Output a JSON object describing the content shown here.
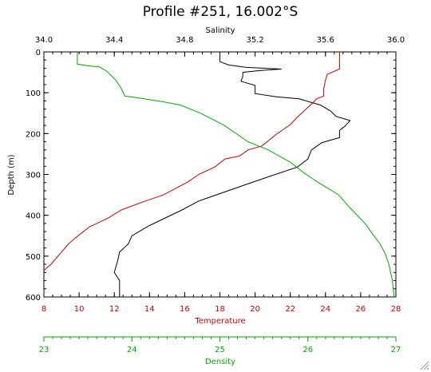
{
  "chart_data": {
    "type": "line",
    "title": "Profile #251, 16.002°S",
    "axes": {
      "salinity": {
        "label": "Salinity",
        "min": 34.0,
        "max": 36.0,
        "ticks": [
          "34.0",
          "34.4",
          "34.8",
          "35.2",
          "35.6",
          "36.0"
        ],
        "color": "#000000"
      },
      "temperature": {
        "label": "Temperature",
        "min": 8,
        "max": 28,
        "ticks": [
          "8",
          "10",
          "12",
          "14",
          "16",
          "18",
          "20",
          "22",
          "24",
          "26",
          "28"
        ],
        "color": "#cc0000"
      },
      "density": {
        "label": "Density",
        "min": 23,
        "max": 27,
        "ticks": [
          "23",
          "24",
          "25",
          "26",
          "27"
        ],
        "color": "#00aa00"
      },
      "depth": {
        "label": "Depth (m)",
        "min": 0,
        "max": 600,
        "ticks": [
          "0",
          "100",
          "200",
          "300",
          "400",
          "500",
          "600"
        ],
        "inverted": true
      }
    },
    "series": [
      {
        "axis": "salinity",
        "color": "#000000",
        "points": [
          [
            35.0,
            0
          ],
          [
            35.0,
            24
          ],
          [
            35.05,
            32
          ],
          [
            35.15,
            38
          ],
          [
            35.35,
            42
          ],
          [
            35.22,
            46
          ],
          [
            35.13,
            50
          ],
          [
            35.13,
            60
          ],
          [
            35.12,
            72
          ],
          [
            35.2,
            82
          ],
          [
            35.2,
            92
          ],
          [
            35.2,
            102
          ],
          [
            35.32,
            110
          ],
          [
            35.45,
            115
          ],
          [
            35.57,
            130
          ],
          [
            35.63,
            145
          ],
          [
            35.66,
            158
          ],
          [
            35.74,
            168
          ],
          [
            35.71,
            182
          ],
          [
            35.68,
            192
          ],
          [
            35.68,
            210
          ],
          [
            35.58,
            222
          ],
          [
            35.52,
            240
          ],
          [
            35.5,
            262
          ],
          [
            35.44,
            282
          ],
          [
            35.28,
            305
          ],
          [
            35.08,
            335
          ],
          [
            34.88,
            365
          ],
          [
            34.78,
            388
          ],
          [
            34.6,
            425
          ],
          [
            34.5,
            450
          ],
          [
            34.48,
            470
          ],
          [
            34.43,
            490
          ],
          [
            34.42,
            510
          ],
          [
            34.4,
            540
          ],
          [
            34.43,
            560
          ],
          [
            34.43,
            600
          ]
        ]
      },
      {
        "axis": "temperature",
        "color": "#cc0000",
        "points": [
          [
            24.8,
            0
          ],
          [
            24.8,
            42
          ],
          [
            24.1,
            55
          ],
          [
            24.0,
            70
          ],
          [
            23.9,
            90
          ],
          [
            23.9,
            108
          ],
          [
            23.5,
            115
          ],
          [
            23.2,
            128
          ],
          [
            22.9,
            140
          ],
          [
            22.4,
            160
          ],
          [
            22.0,
            178
          ],
          [
            21.2,
            202
          ],
          [
            20.4,
            230
          ],
          [
            19.6,
            240
          ],
          [
            19.1,
            255
          ],
          [
            18.3,
            262
          ],
          [
            17.7,
            282
          ],
          [
            16.8,
            300
          ],
          [
            16.2,
            318
          ],
          [
            14.8,
            350
          ],
          [
            13.7,
            366
          ],
          [
            12.4,
            387
          ],
          [
            11.6,
            408
          ],
          [
            10.6,
            428
          ],
          [
            9.8,
            455
          ],
          [
            9.4,
            470
          ],
          [
            8.9,
            495
          ],
          [
            8.4,
            520
          ],
          [
            8.0,
            535
          ]
        ]
      },
      {
        "axis": "density",
        "color": "#00aa00",
        "points": [
          [
            23.38,
            0
          ],
          [
            23.38,
            30
          ],
          [
            23.5,
            34
          ],
          [
            23.63,
            37
          ],
          [
            23.72,
            48
          ],
          [
            23.82,
            70
          ],
          [
            23.88,
            90
          ],
          [
            23.92,
            108
          ],
          [
            24.05,
            112
          ],
          [
            24.35,
            122
          ],
          [
            24.55,
            130
          ],
          [
            24.78,
            150
          ],
          [
            25.05,
            180
          ],
          [
            25.32,
            220
          ],
          [
            25.55,
            240
          ],
          [
            25.8,
            270
          ],
          [
            25.98,
            300
          ],
          [
            26.12,
            320
          ],
          [
            26.35,
            350
          ],
          [
            26.47,
            380
          ],
          [
            26.65,
            420
          ],
          [
            26.75,
            450
          ],
          [
            26.82,
            470
          ],
          [
            26.88,
            495
          ],
          [
            26.92,
            520
          ],
          [
            26.96,
            560
          ],
          [
            26.98,
            600
          ]
        ]
      }
    ]
  }
}
